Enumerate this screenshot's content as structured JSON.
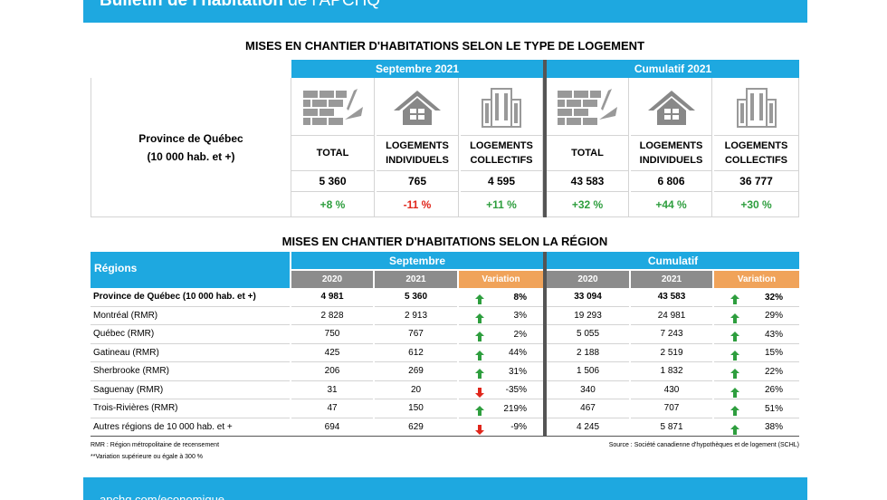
{
  "header": {
    "title": "Bulletin de l'habitation",
    "subtitle": "de l'APCHQ"
  },
  "table1": {
    "title": "MISES EN CHANTIER D'HABITATIONS SELON LE TYPE DE LOGEMENT",
    "groups": [
      "Septembre 2021",
      "Cumulatif 2021"
    ],
    "row_label": [
      "Province de Québec",
      "(10 000 hab. et +)"
    ],
    "columns": [
      [
        "TOTAL"
      ],
      [
        "LOGEMENTS",
        "INDIVIDUELS"
      ],
      [
        "LOGEMENTS",
        "COLLECTIFS"
      ],
      [
        "TOTAL"
      ],
      [
        "LOGEMENTS",
        "INDIVIDUELS"
      ],
      [
        "LOGEMENTS",
        "COLLECTIFS"
      ]
    ],
    "values": [
      "5 360",
      "765",
      "4 595",
      "43 583",
      "6 806",
      "36 777"
    ],
    "variations": [
      "+8 %",
      "-11 %",
      "+11 %",
      "+32 %",
      "+44 %",
      "+30 %"
    ]
  },
  "table2": {
    "title": "MISES EN CHANTIER D'HABITATIONS SELON LA RÉGION",
    "region_header": "Régions",
    "groups": [
      "Septembre",
      "Cumulatif"
    ],
    "subheaders": [
      "2020",
      "2021",
      "Variation",
      "2020",
      "2021",
      "Variation"
    ],
    "rows": [
      [
        "Province de Québec (10 000 hab. et +)",
        "4 981",
        "5 360",
        "8%",
        "33 094",
        "43 583",
        "32%"
      ],
      [
        "Montréal (RMR)",
        "2 828",
        "2 913",
        "3%",
        "19 293",
        "24 981",
        "29%"
      ],
      [
        "Québec (RMR)",
        "750",
        "767",
        "2%",
        "5 055",
        "7 243",
        "43%"
      ],
      [
        "Gatineau (RMR)",
        "425",
        "612",
        "44%",
        "2 188",
        "2 519",
        "15%"
      ],
      [
        "Sherbrooke (RMR)",
        "206",
        "269",
        "31%",
        "1 506",
        "1 832",
        "22%"
      ],
      [
        "Saguenay (RMR)",
        "31",
        "20",
        "-35%",
        "340",
        "430",
        "26%"
      ],
      [
        "Trois-Rivières (RMR)",
        "47",
        "150",
        "219%",
        "467",
        "707",
        "51%"
      ],
      [
        "Autres régions de 10 000  hab. et +",
        "694",
        "629",
        "-9%",
        "4 245",
        "5 871",
        "38%"
      ]
    ]
  },
  "footnotes": [
    "RMR : Région métropolitaine de recensement",
    "**Variation supérieure ou égale à 300 %"
  ],
  "source": "Source : Société canadienne d'hypothèques et de logement (SCHL)",
  "footer": "apchq.com/economique"
}
